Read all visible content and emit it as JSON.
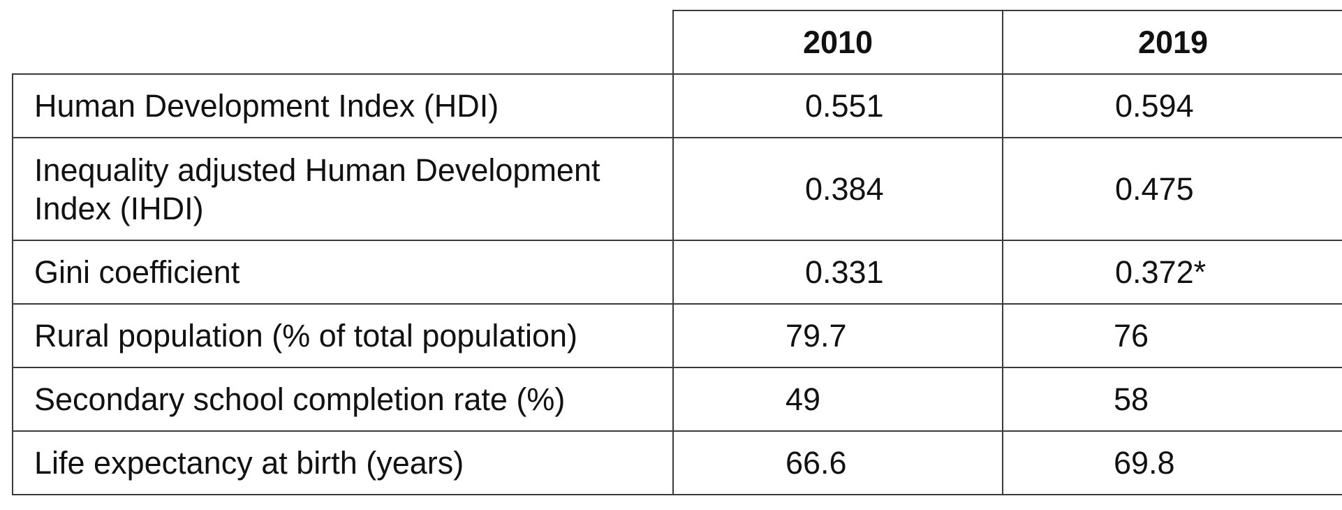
{
  "table": {
    "columns": [
      "",
      "2010",
      "2019"
    ],
    "rows": [
      {
        "label": "Human Development Index (HDI)",
        "v2010": "0.551",
        "v2019": "0.594"
      },
      {
        "label": "Inequality adjusted Human Development Index (IHDI)",
        "v2010": "0.384",
        "v2019": "0.475"
      },
      {
        "label": "Gini coefficient",
        "v2010": "0.331",
        "v2019": "0.372*"
      },
      {
        "label": "Rural population (% of total population)",
        "v2010": "79.7",
        "v2019": "76"
      },
      {
        "label": "Secondary school completion rate (%)",
        "v2010": "49",
        "v2019": "58"
      },
      {
        "label": "Life expectancy at birth (years)",
        "v2010": "66.6",
        "v2019": "69.8"
      }
    ]
  }
}
